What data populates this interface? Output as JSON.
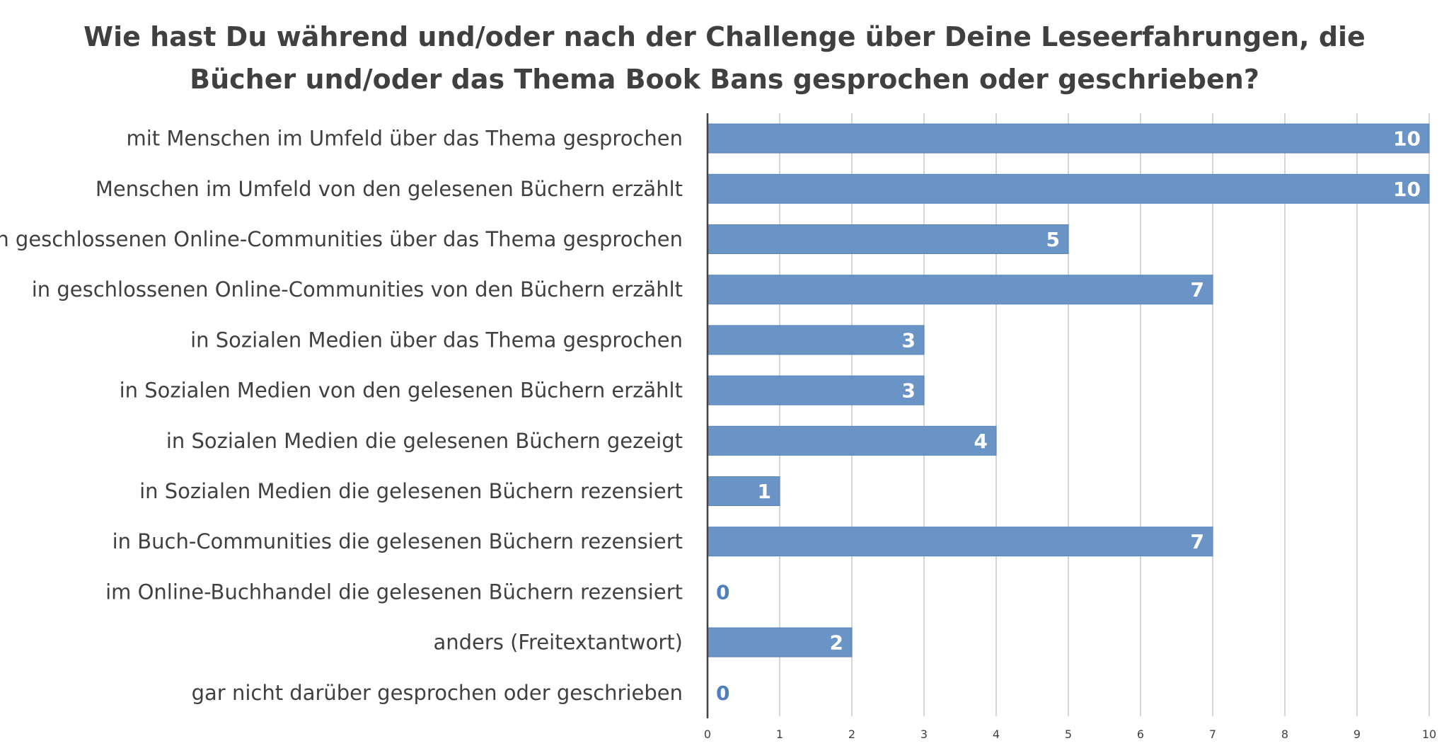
{
  "chart_data": {
    "type": "bar",
    "orientation": "horizontal",
    "title_lines": [
      "Wie hast Du während und/oder nach der Challenge über Deine Leseerfahrungen, die",
      "Bücher und/oder das Thema Book Bans gesprochen oder geschrieben?"
    ],
    "categories": [
      "mit Menschen im Umfeld über das Thema gesprochen",
      "Menschen im Umfeld von den gelesenen Büchern erzählt",
      "in geschlossenen Online-Communities über das Thema gesprochen",
      "in geschlossenen Online-Communities von den Büchern erzählt",
      "in Sozialen Medien über das Thema gesprochen",
      "in Sozialen Medien von den gelesenen Büchern erzählt",
      "in Sozialen Medien die gelesenen Büchern gezeigt",
      "in Sozialen Medien die gelesenen Büchern rezensiert",
      "in Buch-Communities die gelesenen Büchern rezensiert",
      "im Online-Buchhandel die gelesenen Büchern rezensiert",
      "anders (Freitextantwort)",
      "gar nicht darüber gesprochen oder geschrieben"
    ],
    "values": [
      10,
      10,
      5,
      7,
      3,
      3,
      4,
      1,
      7,
      0,
      2,
      0
    ],
    "xlim": [
      0,
      10
    ],
    "xticks": [
      0,
      1,
      2,
      3,
      4,
      5,
      6,
      7,
      8,
      9,
      10
    ],
    "grid": "vertical",
    "legend": "none",
    "colors": {
      "bar": "#6a93c6",
      "bar_edge": "#5a84ba",
      "label_inside": "#ffffff",
      "label_outside": "#4f7fbd",
      "text": "#404040",
      "grid": "#c8c8c8",
      "axis": "#404040"
    }
  }
}
